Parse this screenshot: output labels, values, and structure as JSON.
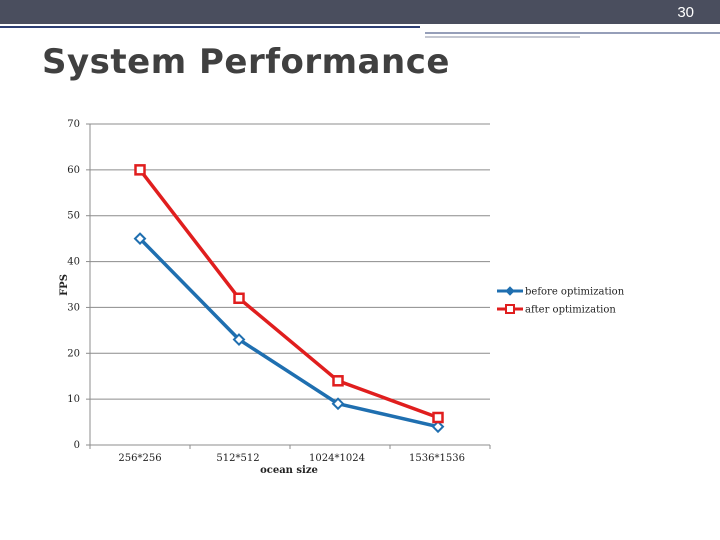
{
  "slide": {
    "page_number": "30",
    "title": "System Performance",
    "colors": {
      "topbar": "#4a4e5e",
      "accent": "#2e3f73"
    }
  },
  "chart_data": {
    "type": "line",
    "title": "",
    "xlabel": "ocean size",
    "ylabel": "FPS",
    "categories": [
      "256*256",
      "512*512",
      "1024*1024",
      "1536*1536"
    ],
    "yticks": [
      "0",
      "10",
      "20",
      "30",
      "40",
      "50",
      "60",
      "70"
    ],
    "ylim": [
      0,
      70
    ],
    "grid": true,
    "legend": "right",
    "series": [
      {
        "name": "before optimization",
        "values": [
          45,
          23,
          9,
          4
        ],
        "color": "#1f6fb0",
        "marker": "diamond"
      },
      {
        "name": "after optimization",
        "values": [
          60,
          32,
          14,
          6
        ],
        "color": "#e01e1e",
        "marker": "square"
      }
    ]
  }
}
